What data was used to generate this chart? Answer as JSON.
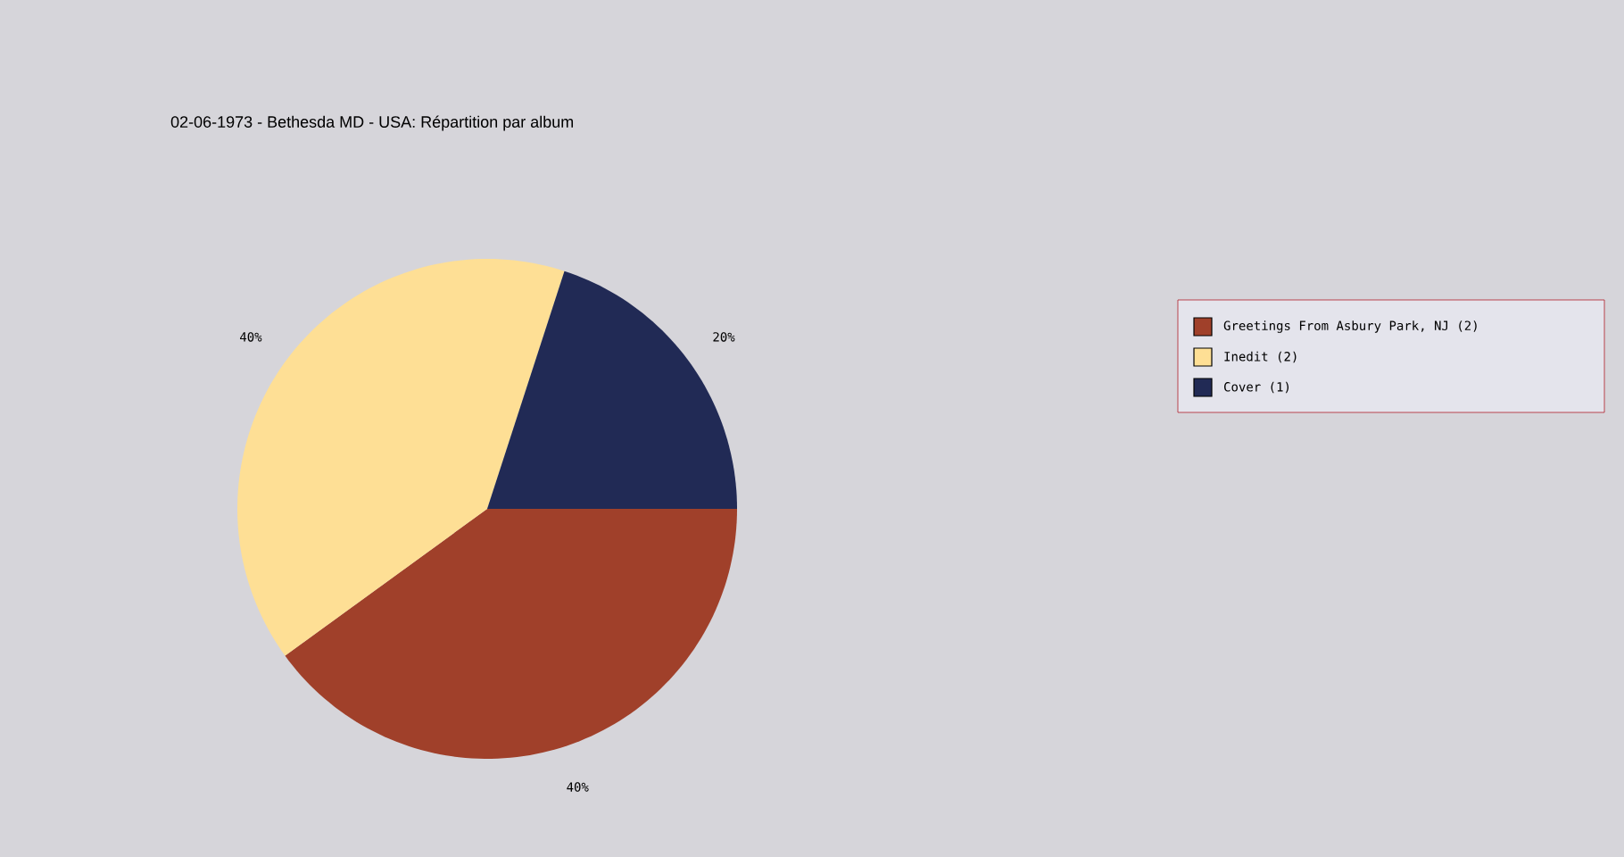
{
  "chart_data": {
    "type": "pie",
    "title": "02-06-1973 - Bethesda MD - USA:  Répartition par album",
    "categories": [
      "Greetings From Asbury Park, NJ (2)",
      "Inedit (2)",
      "Cover (1)"
    ],
    "values": [
      40,
      40,
      20
    ],
    "value_labels": [
      "40%",
      "40%",
      "20%"
    ],
    "colors": [
      "#a0402a",
      "#fedf95",
      "#212a55"
    ],
    "legend": "right"
  }
}
